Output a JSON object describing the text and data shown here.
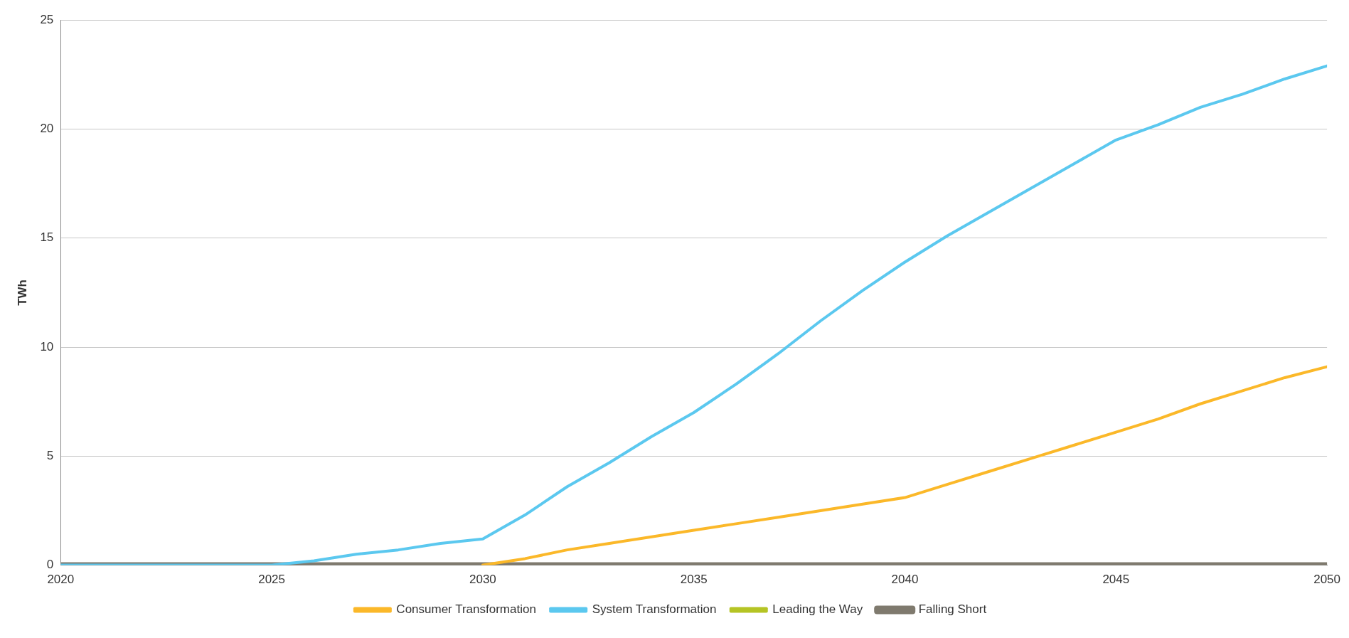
{
  "chart_data": {
    "type": "line",
    "ylabel": "TWh",
    "x": [
      2020,
      2021,
      2022,
      2023,
      2024,
      2025,
      2026,
      2027,
      2028,
      2029,
      2030,
      2031,
      2032,
      2033,
      2034,
      2035,
      2036,
      2037,
      2038,
      2039,
      2040,
      2041,
      2042,
      2043,
      2044,
      2045,
      2046,
      2047,
      2048,
      2049,
      2050
    ],
    "series": [
      {
        "name": "Consumer Transformation",
        "color": "#fbb829",
        "values": [
          null,
          null,
          null,
          null,
          null,
          null,
          null,
          null,
          null,
          null,
          0,
          0.3,
          0.7,
          1.0,
          1.3,
          1.6,
          1.9,
          2.2,
          2.5,
          2.8,
          3.1,
          3.7,
          4.3,
          4.9,
          5.5,
          6.1,
          6.7,
          7.4,
          8.0,
          8.6,
          9.1
        ]
      },
      {
        "name": "System Transformation",
        "color": "#5bc8ef",
        "values": [
          0,
          0,
          0,
          0,
          0,
          0,
          0.2,
          0.5,
          0.7,
          1.0,
          1.2,
          2.3,
          3.6,
          4.7,
          5.9,
          7.0,
          8.3,
          9.7,
          11.2,
          12.6,
          13.9,
          15.1,
          16.2,
          17.3,
          18.4,
          19.5,
          20.2,
          21.0,
          21.6,
          22.3,
          22.9
        ]
      },
      {
        "name": "Leading the Way",
        "color": "#b5c424",
        "values": [
          null,
          null,
          null,
          null,
          null,
          null,
          null,
          null,
          null,
          null,
          null,
          null,
          null,
          null,
          null,
          null,
          null,
          null,
          null,
          null,
          null,
          null,
          null,
          null,
          null,
          null,
          null,
          null,
          null,
          null,
          null
        ]
      },
      {
        "name": "Falling Short",
        "color": "#7f7a6e",
        "values": [
          0,
          0,
          0,
          0,
          0,
          0,
          0,
          0,
          0,
          0,
          0,
          0,
          0,
          0,
          0,
          0,
          0,
          0,
          0,
          0,
          0,
          0,
          0,
          0,
          0,
          0,
          0,
          0,
          0,
          0,
          0
        ]
      }
    ],
    "xlim": [
      2020,
      2050
    ],
    "xticks": [
      2020,
      2025,
      2030,
      2035,
      2040,
      2045,
      2050
    ],
    "ylim": [
      0,
      25
    ],
    "yticks": [
      0,
      5,
      10,
      15,
      20,
      25
    ],
    "grid": "y",
    "legend": "bottom",
    "marker": "none",
    "line_style": "solid"
  }
}
